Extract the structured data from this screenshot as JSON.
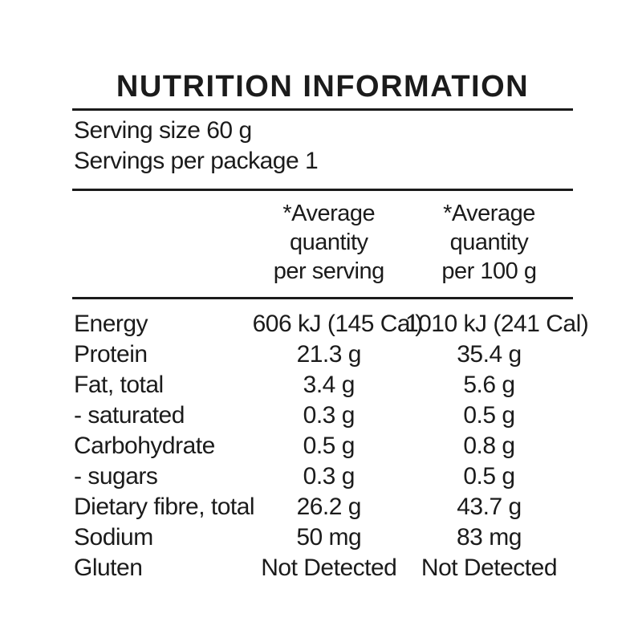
{
  "title": "NUTRITION INFORMATION",
  "serving_info": {
    "serving_size": "Serving size 60 g",
    "servings_per_package": "Servings per package 1"
  },
  "column_headers": {
    "per_serving": "*Average\nquantity\nper serving",
    "per_100g": "*Average\nquantity\nper 100 g"
  },
  "rows": [
    {
      "label": "Energy",
      "per_serving": "606 kJ (145 Cal)",
      "per_100g": "1010 kJ (241 Cal)"
    },
    {
      "label": "Protein",
      "per_serving": "21.3 g",
      "per_100g": "35.4 g"
    },
    {
      "label": "Fat, total",
      "per_serving": "3.4 g",
      "per_100g": "5.6 g"
    },
    {
      "label": "- saturated",
      "per_serving": "0.3 g",
      "per_100g": "0.5 g"
    },
    {
      "label": "Carbohydrate",
      "per_serving": "0.5 g",
      "per_100g": "0.8 g"
    },
    {
      "label": "- sugars",
      "per_serving": "0.3 g",
      "per_100g": "0.5 g"
    },
    {
      "label": "Dietary fibre, total",
      "per_serving": "26.2 g",
      "per_100g": "43.7 g"
    },
    {
      "label": "Sodium",
      "per_serving": "50 mg",
      "per_100g": "83 mg"
    },
    {
      "label": "Gluten",
      "per_serving": "Not Detected",
      "per_100g": "Not Detected"
    }
  ],
  "colors": {
    "text": "#1b1b1b",
    "background": "#ffffff",
    "rule": "#1b1b1b"
  }
}
